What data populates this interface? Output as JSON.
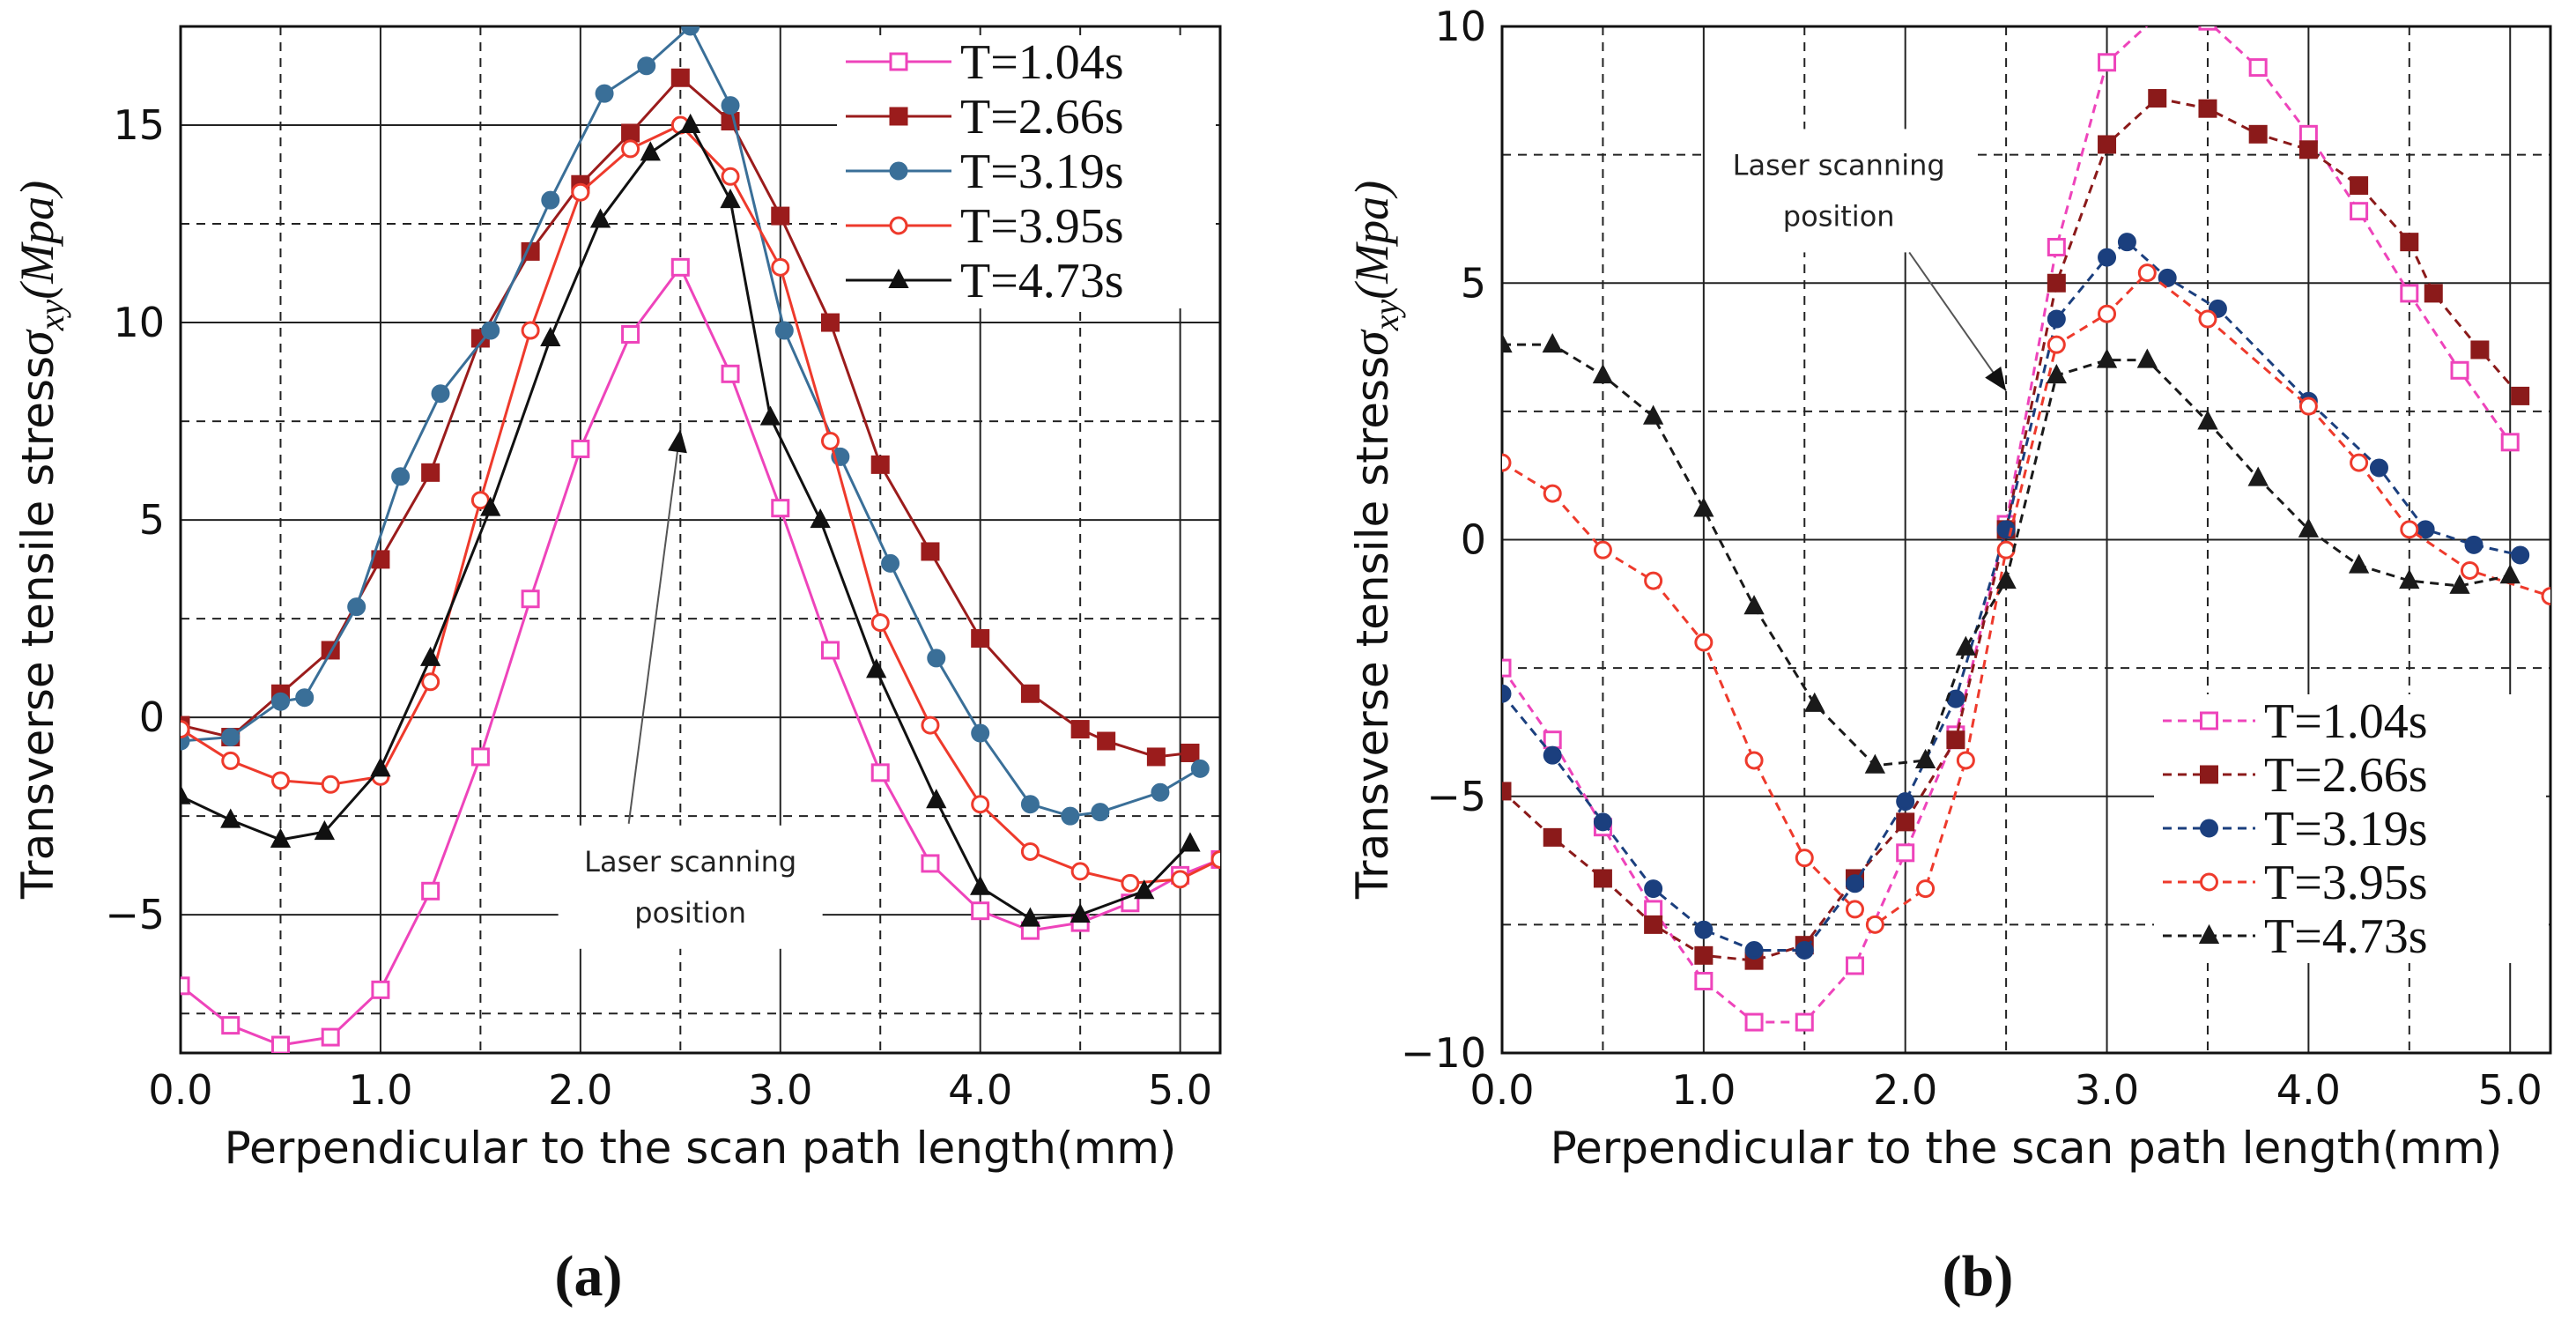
{
  "chart_data": [
    {
      "type": "line",
      "panel_label": "(a)",
      "xlabel": "Perpendicular to the scan path length(mm)",
      "ylabel_prefix": "Transverse tensile stress",
      "ylabel_symbol": "σ",
      "ylabel_subscript": "xy",
      "ylabel_unit": "(Mpa)",
      "xlim": [
        0,
        5.2
      ],
      "ylim": [
        -8.5,
        17.5
      ],
      "xticks": [
        0,
        1,
        2,
        3,
        4,
        5
      ],
      "xtick_labels": [
        "0.0",
        "1.0",
        "2.0",
        "3.0",
        "4.0",
        "5.0"
      ],
      "yticks": [
        -5,
        0,
        5,
        10,
        15
      ],
      "ytick_labels": [
        "−5",
        "0",
        "5",
        "10",
        "15"
      ],
      "grid": true,
      "legend_position": "top-right",
      "annotation": {
        "lines": [
          "Laser scanning",
          "position"
        ],
        "text_at": [
          2.55,
          -4.3
        ],
        "arrow_to": [
          2.5,
          7.3
        ]
      },
      "series": [
        {
          "name": "T=1.04s",
          "color": "#ee44bb",
          "marker": "square-open",
          "dashed": false,
          "x": [
            0,
            0.25,
            0.5,
            0.75,
            1.0,
            1.25,
            1.5,
            1.75,
            2.0,
            2.25,
            2.5,
            2.75,
            3.0,
            3.25,
            3.5,
            3.75,
            4.0,
            4.25,
            4.5,
            4.75,
            5.0,
            5.2
          ],
          "y": [
            -6.8,
            -7.8,
            -8.3,
            -8.1,
            -6.9,
            -4.4,
            -1.0,
            3.0,
            6.8,
            9.7,
            11.4,
            8.7,
            5.3,
            1.7,
            -1.4,
            -3.7,
            -4.9,
            -5.4,
            -5.2,
            -4.7,
            -4.0,
            -3.6
          ]
        },
        {
          "name": "T=2.66s",
          "color": "#9b1c1c",
          "marker": "square-filled",
          "dashed": false,
          "x": [
            0,
            0.25,
            0.5,
            0.75,
            1.0,
            1.25,
            1.5,
            1.75,
            2.0,
            2.25,
            2.5,
            2.75,
            3.0,
            3.25,
            3.5,
            3.75,
            4.0,
            4.25,
            4.5,
            4.63,
            4.88,
            5.05
          ],
          "y": [
            -0.2,
            -0.5,
            0.6,
            1.7,
            4.0,
            6.2,
            9.6,
            11.8,
            13.5,
            14.8,
            16.2,
            15.1,
            12.7,
            10.0,
            6.4,
            4.2,
            2.0,
            0.6,
            -0.3,
            -0.6,
            -1.0,
            -0.9
          ]
        },
        {
          "name": "T=3.19s",
          "color": "#3a6f98",
          "marker": "circle-filled",
          "dashed": false,
          "x": [
            0,
            0.25,
            0.5,
            0.62,
            0.88,
            1.1,
            1.3,
            1.55,
            1.85,
            2.12,
            2.33,
            2.55,
            2.75,
            3.02,
            3.3,
            3.55,
            3.78,
            4.0,
            4.25,
            4.45,
            4.6,
            4.9,
            5.1
          ],
          "y": [
            -0.6,
            -0.5,
            0.4,
            0.5,
            2.8,
            6.1,
            8.2,
            9.8,
            13.1,
            15.8,
            16.5,
            17.5,
            15.5,
            9.8,
            6.6,
            3.9,
            1.5,
            -0.4,
            -2.2,
            -2.5,
            -2.4,
            -1.9,
            -1.3
          ]
        },
        {
          "name": "T=3.95s",
          "color": "#ee3a2c",
          "marker": "circle-open",
          "dashed": false,
          "x": [
            0,
            0.25,
            0.5,
            0.75,
            1.0,
            1.25,
            1.5,
            1.75,
            2.0,
            2.25,
            2.5,
            2.75,
            3.0,
            3.25,
            3.5,
            3.75,
            4.0,
            4.25,
            4.5,
            4.75,
            5.0,
            5.2
          ],
          "y": [
            -0.3,
            -1.1,
            -1.6,
            -1.7,
            -1.5,
            0.9,
            5.5,
            9.8,
            13.3,
            14.4,
            15.0,
            13.7,
            11.4,
            7.0,
            2.4,
            -0.2,
            -2.2,
            -3.4,
            -3.9,
            -4.2,
            -4.1,
            -3.6
          ]
        },
        {
          "name": "T=4.73s",
          "color": "#111111",
          "marker": "triangle-filled",
          "dashed": false,
          "x": [
            0,
            0.25,
            0.5,
            0.72,
            1.0,
            1.25,
            1.55,
            1.85,
            2.1,
            2.35,
            2.55,
            2.75,
            2.95,
            3.2,
            3.48,
            3.78,
            4.0,
            4.25,
            4.5,
            4.82,
            5.05
          ],
          "y": [
            -2.0,
            -2.6,
            -3.1,
            -2.9,
            -1.3,
            1.5,
            5.3,
            9.6,
            12.6,
            14.3,
            15.0,
            13.1,
            7.6,
            5.0,
            1.2,
            -2.1,
            -4.3,
            -5.1,
            -5.0,
            -4.4,
            -3.2
          ]
        }
      ]
    },
    {
      "type": "line",
      "panel_label": "(b)",
      "xlabel": "Perpendicular to the scan path length(mm)",
      "ylabel_prefix": "Transverse tensile stress",
      "ylabel_symbol": "σ",
      "ylabel_subscript": "xy",
      "ylabel_unit": "(Mpa)",
      "xlim": [
        0,
        5.2
      ],
      "ylim": [
        -10,
        10
      ],
      "xticks": [
        0,
        1,
        2,
        3,
        4,
        5
      ],
      "xtick_labels": [
        "0.0",
        "1.0",
        "2.0",
        "3.0",
        "4.0",
        "5.0"
      ],
      "yticks": [
        -10,
        -5,
        0,
        5,
        10
      ],
      "ytick_labels": [
        "−10",
        "−5",
        "0",
        "5",
        "10"
      ],
      "grid": true,
      "legend_position": "bottom-right",
      "annotation": {
        "lines": [
          "Laser scanning",
          "position"
        ],
        "text_at": [
          1.67,
          6.8
        ],
        "arrow_to": [
          2.5,
          2.9
        ]
      },
      "series": [
        {
          "name": "T=1.04s",
          "color": "#ee44bb",
          "marker": "square-open",
          "dashed": true,
          "x": [
            0,
            0.25,
            0.5,
            0.75,
            1.0,
            1.25,
            1.5,
            1.75,
            2.0,
            2.25,
            2.5,
            2.75,
            3.0,
            3.25,
            3.5,
            3.75,
            4.0,
            4.25,
            4.5,
            4.75,
            5.0
          ],
          "y": [
            -2.5,
            -3.9,
            -5.6,
            -7.2,
            -8.6,
            -9.4,
            -9.4,
            -8.3,
            -6.1,
            -3.8,
            0.3,
            5.7,
            9.3,
            10.2,
            10.1,
            9.2,
            7.9,
            6.4,
            4.8,
            3.3,
            1.9
          ]
        },
        {
          "name": "T=2.66s",
          "color": "#8b1a1a",
          "marker": "square-filled",
          "dashed": true,
          "x": [
            0,
            0.25,
            0.5,
            0.75,
            1.0,
            1.25,
            1.5,
            1.75,
            2.0,
            2.25,
            2.5,
            2.75,
            3.0,
            3.25,
            3.5,
            3.75,
            4.0,
            4.25,
            4.5,
            4.62,
            4.85,
            5.05
          ],
          "y": [
            -4.9,
            -5.8,
            -6.6,
            -7.5,
            -8.1,
            -8.2,
            -7.9,
            -6.6,
            -5.5,
            -3.9,
            0.2,
            5.0,
            7.7,
            8.6,
            8.4,
            7.9,
            7.6,
            6.9,
            5.8,
            4.8,
            3.7,
            2.8
          ]
        },
        {
          "name": "T=3.19s",
          "color": "#1b3f7e",
          "marker": "circle-filled",
          "dashed": true,
          "x": [
            0,
            0.25,
            0.5,
            0.75,
            1.0,
            1.25,
            1.5,
            1.75,
            2.0,
            2.25,
            2.5,
            2.75,
            3.0,
            3.1,
            3.3,
            3.55,
            4.0,
            4.35,
            4.58,
            4.82,
            5.05
          ],
          "y": [
            -3.0,
            -4.2,
            -5.5,
            -6.8,
            -7.6,
            -8.0,
            -8.0,
            -6.7,
            -5.1,
            -3.1,
            0.2,
            4.3,
            5.5,
            5.8,
            5.1,
            4.5,
            2.7,
            1.4,
            0.2,
            -0.1,
            -0.3
          ]
        },
        {
          "name": "T=3.95s",
          "color": "#ee3a2c",
          "marker": "circle-open",
          "dashed": true,
          "x": [
            0,
            0.25,
            0.5,
            0.75,
            1.0,
            1.25,
            1.5,
            1.75,
            1.85,
            2.1,
            2.3,
            2.5,
            2.75,
            3.0,
            3.2,
            3.5,
            4.0,
            4.25,
            4.5,
            4.8,
            5.2
          ],
          "y": [
            1.5,
            0.9,
            -0.2,
            -0.8,
            -2.0,
            -4.3,
            -6.2,
            -7.2,
            -7.5,
            -6.8,
            -4.3,
            -0.2,
            3.8,
            4.4,
            5.2,
            4.3,
            2.6,
            1.5,
            0.2,
            -0.6,
            -1.1
          ]
        },
        {
          "name": "T=4.73s",
          "color": "#1a1a1a",
          "marker": "triangle-filled",
          "dashed": true,
          "x": [
            0,
            0.25,
            0.5,
            0.75,
            1.0,
            1.25,
            1.55,
            1.85,
            2.1,
            2.3,
            2.5,
            2.75,
            3.0,
            3.2,
            3.5,
            3.75,
            4.0,
            4.25,
            4.5,
            4.75,
            5.0
          ],
          "y": [
            3.8,
            3.8,
            3.2,
            2.4,
            0.6,
            -1.3,
            -3.2,
            -4.4,
            -4.3,
            -2.1,
            -0.8,
            3.2,
            3.5,
            3.5,
            2.3,
            1.2,
            0.2,
            -0.5,
            -0.8,
            -0.9,
            -0.7
          ]
        }
      ]
    }
  ]
}
